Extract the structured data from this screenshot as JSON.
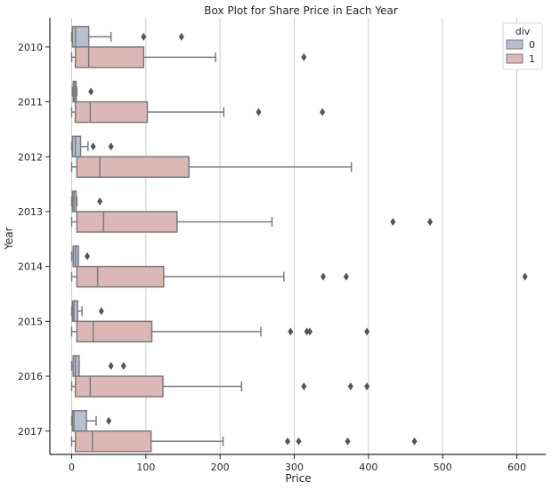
{
  "chart_data": {
    "type": "boxplot",
    "orientation": "horizontal",
    "title": "Box Plot for Share Price in Each Year",
    "xlabel": "Price",
    "ylabel": "Year",
    "xlim": [
      -30,
      640
    ],
    "xticks": [
      0,
      100,
      200,
      300,
      400,
      500,
      600
    ],
    "categories": [
      "2010",
      "2011",
      "2012",
      "2013",
      "2014",
      "2015",
      "2016",
      "2017"
    ],
    "grid": "vertical gridlines",
    "legend": {
      "title": "div",
      "placement": "top-right"
    },
    "series": [
      {
        "name": "0",
        "color": "#b7c0d1",
        "boxes": [
          {
            "category": "2010",
            "whislo": 0,
            "q1": 1,
            "med": 5,
            "q3": 23,
            "whishi": 53,
            "fliers": [
              97,
              148
            ]
          },
          {
            "category": "2011",
            "whislo": 1,
            "q1": 2,
            "med": 4,
            "q3": 6,
            "whishi": 7,
            "fliers": [
              26
            ]
          },
          {
            "category": "2012",
            "whislo": 0,
            "q1": 1,
            "med": 5,
            "q3": 12,
            "whishi": 22,
            "fliers": [
              29,
              53
            ]
          },
          {
            "category": "2013",
            "whislo": 0,
            "q1": 1,
            "med": 3,
            "q3": 6,
            "whishi": 7,
            "fliers": [
              38
            ]
          },
          {
            "category": "2014",
            "whislo": 0,
            "q1": 2,
            "med": 5,
            "q3": 9,
            "whishi": 9,
            "fliers": [
              21
            ]
          },
          {
            "category": "2015",
            "whislo": 0,
            "q1": 1,
            "med": 3,
            "q3": 8,
            "whishi": 14,
            "fliers": [
              40
            ]
          },
          {
            "category": "2016",
            "whislo": 0,
            "q1": 2,
            "med": 5,
            "q3": 10,
            "whishi": 10,
            "fliers": [
              53,
              70
            ]
          },
          {
            "category": "2017",
            "whislo": 0,
            "q1": 1,
            "med": 3,
            "q3": 20,
            "whishi": 33,
            "fliers": [
              50
            ]
          }
        ]
      },
      {
        "name": "1",
        "color": "#dbb7b6",
        "boxes": [
          {
            "category": "2010",
            "whislo": 0,
            "q1": 5,
            "med": 23,
            "q3": 97,
            "whishi": 194,
            "fliers": [
              313
            ]
          },
          {
            "category": "2011",
            "whislo": 0,
            "q1": 5,
            "med": 25,
            "q3": 102,
            "whishi": 205,
            "fliers": [
              252,
              338
            ]
          },
          {
            "category": "2012",
            "whislo": 0,
            "q1": 7,
            "med": 38,
            "q3": 158,
            "whishi": 377,
            "fliers": []
          },
          {
            "category": "2013",
            "whislo": 0,
            "q1": 7,
            "med": 43,
            "q3": 142,
            "whishi": 270,
            "fliers": [
              433,
              483
            ]
          },
          {
            "category": "2014",
            "whislo": 0,
            "q1": 7,
            "med": 35,
            "q3": 124,
            "whishi": 286,
            "fliers": [
              339,
              370,
              611
            ]
          },
          {
            "category": "2015",
            "whislo": 0,
            "q1": 7,
            "med": 29,
            "q3": 108,
            "whishi": 255,
            "fliers": [
              295,
              317,
              321,
              398
            ]
          },
          {
            "category": "2016",
            "whislo": 0,
            "q1": 5,
            "med": 25,
            "q3": 123,
            "whishi": 229,
            "fliers": [
              313,
              376,
              398
            ]
          },
          {
            "category": "2017",
            "whislo": 0,
            "q1": 5,
            "med": 28,
            "q3": 107,
            "whishi": 204,
            "fliers": [
              291,
              306,
              372,
              462
            ]
          }
        ]
      }
    ]
  }
}
